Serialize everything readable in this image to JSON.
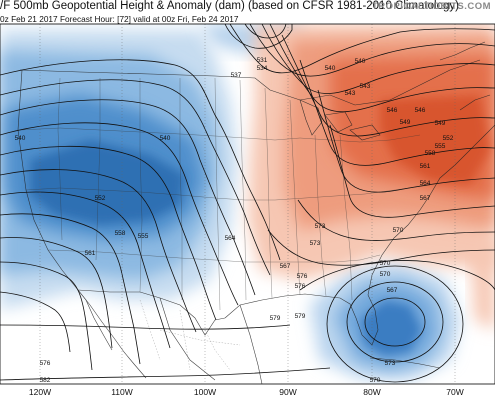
{
  "header": {
    "title": "/F 500mb Geopotential Height & Anomaly (dam) (based on CFSR 1981-2010 Climatology)",
    "subtitle": "0z Feb 21 2017   Forecast Hour: [72]   valid at 00z Fri, Feb 24 2017",
    "brand": "TROPICALTIDBITS.COM"
  },
  "colors": {
    "negative_anomaly": "#2f6fb3",
    "positive_anomaly": "#e2552f",
    "contours": "#111111"
  },
  "map": {
    "contour_labels": [
      "531",
      "537",
      "540",
      "543",
      "546",
      "549",
      "552",
      "555",
      "558",
      "561",
      "564",
      "567",
      "570",
      "573",
      "576",
      "579",
      "582"
    ],
    "longitude_labels": [
      "120W",
      "110W",
      "100W",
      "90W",
      "80W",
      "70W"
    ],
    "placed_labels": [
      "531",
      "534",
      "537",
      "540",
      "540",
      "540",
      "543",
      "546",
      "549",
      "552",
      "555",
      "558",
      "561",
      "564",
      "567",
      "570",
      "573",
      "576",
      "576",
      "579",
      "582",
      "540",
      "543",
      "546",
      "549",
      "552",
      "555",
      "558",
      "561",
      "564",
      "567",
      "570",
      "573",
      "576",
      "567",
      "570",
      "573",
      "570",
      "579"
    ]
  }
}
